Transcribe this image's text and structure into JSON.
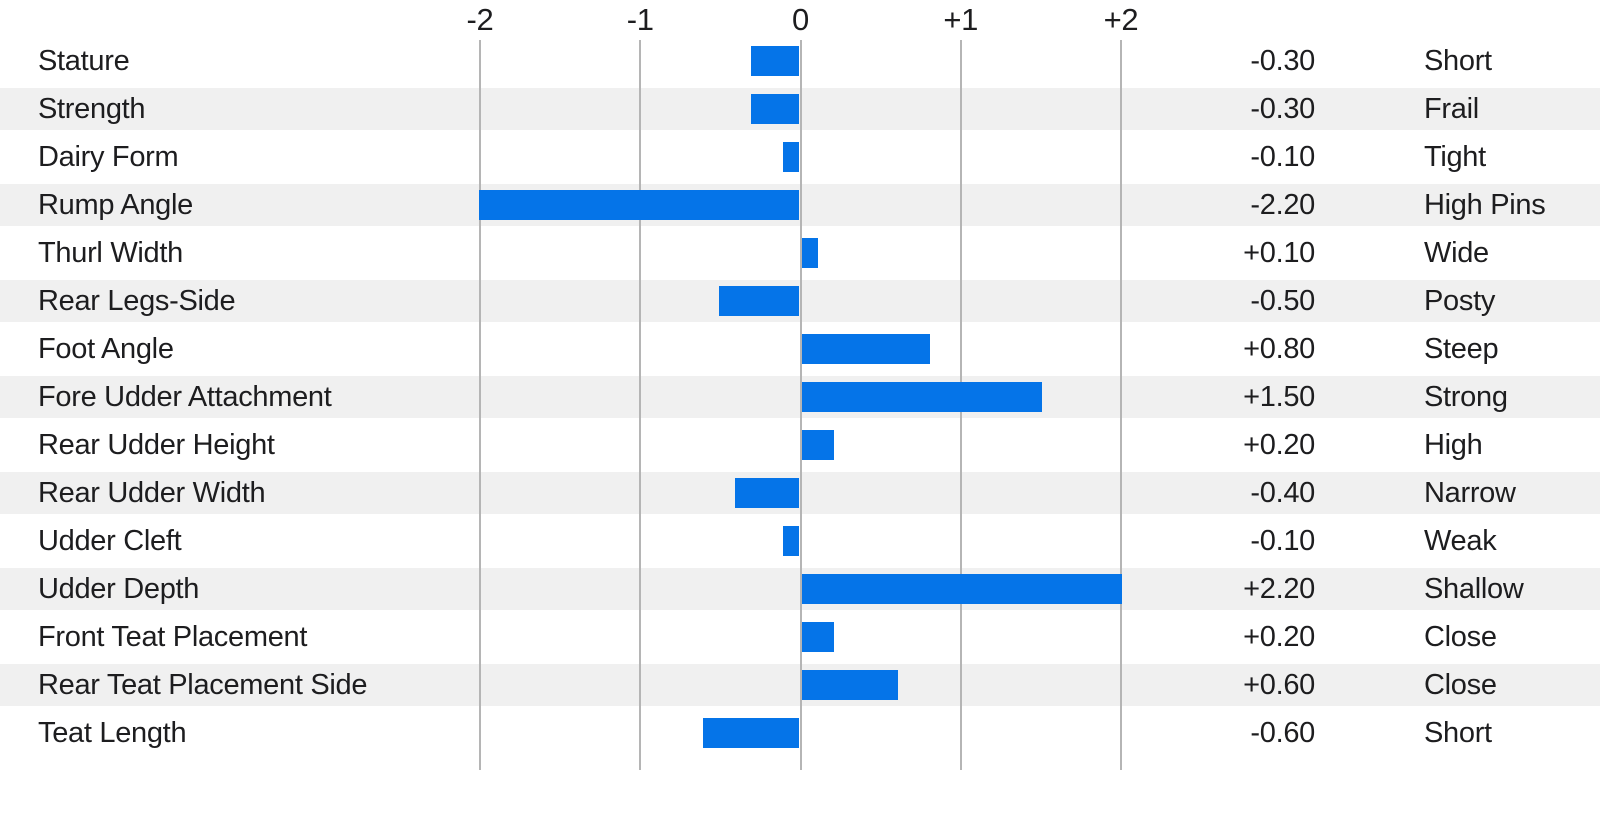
{
  "chart_data": {
    "type": "bar",
    "orientation": "horizontal",
    "title": "",
    "x_axis": {
      "tick_labels": [
        "-2",
        "-1",
        "0",
        "+1",
        "+2"
      ],
      "tick_values": [
        -2,
        -1,
        0,
        1,
        2
      ],
      "plot_min": -2,
      "plot_max": 2,
      "bars_clipped_to_range": true,
      "grid": "on"
    },
    "columns": [
      "trait",
      "value",
      "descriptor"
    ],
    "colors": {
      "bar": "#0574e8",
      "alt_row_background": "#f0f0f0",
      "gridline": "#b5b5b5",
      "text": "#1d1d1f",
      "background": "#ffffff"
    },
    "rows": [
      {
        "trait": "Stature",
        "value": -0.3,
        "value_label": "-0.30",
        "descriptor": "Short"
      },
      {
        "trait": "Strength",
        "value": -0.3,
        "value_label": "-0.30",
        "descriptor": "Frail"
      },
      {
        "trait": "Dairy Form",
        "value": -0.1,
        "value_label": "-0.10",
        "descriptor": "Tight"
      },
      {
        "trait": "Rump Angle",
        "value": -2.2,
        "value_label": "-2.20",
        "descriptor": "High Pins"
      },
      {
        "trait": "Thurl Width",
        "value": 0.1,
        "value_label": "+0.10",
        "descriptor": "Wide"
      },
      {
        "trait": "Rear Legs-Side",
        "value": -0.5,
        "value_label": "-0.50",
        "descriptor": "Posty"
      },
      {
        "trait": "Foot Angle",
        "value": 0.8,
        "value_label": "+0.80",
        "descriptor": "Steep"
      },
      {
        "trait": "Fore Udder Attachment",
        "value": 1.5,
        "value_label": "+1.50",
        "descriptor": "Strong"
      },
      {
        "trait": "Rear Udder Height",
        "value": 0.2,
        "value_label": "+0.20",
        "descriptor": "High"
      },
      {
        "trait": "Rear Udder Width",
        "value": -0.4,
        "value_label": "-0.40",
        "descriptor": "Narrow"
      },
      {
        "trait": "Udder Cleft",
        "value": -0.1,
        "value_label": "-0.10",
        "descriptor": "Weak"
      },
      {
        "trait": "Udder Depth",
        "value": 2.2,
        "value_label": "+2.20",
        "descriptor": "Shallow"
      },
      {
        "trait": "Front Teat Placement",
        "value": 0.2,
        "value_label": "+0.20",
        "descriptor": "Close"
      },
      {
        "trait": "Rear Teat Placement Side",
        "value": 0.6,
        "value_label": "+0.60",
        "descriptor": "Close"
      },
      {
        "trait": "Teat Length",
        "value": -0.6,
        "value_label": "-0.60",
        "descriptor": "Short"
      }
    ]
  }
}
